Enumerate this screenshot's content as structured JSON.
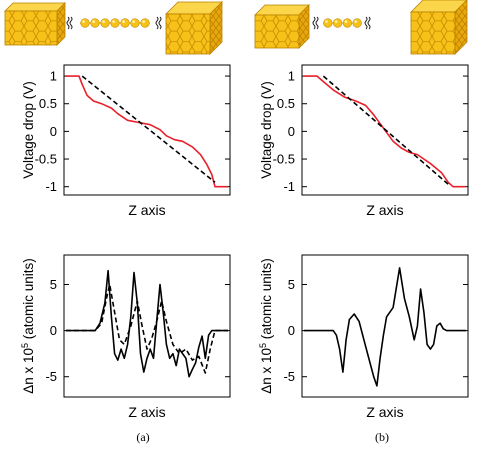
{
  "chart_data": [
    {
      "type": "line",
      "xlabel": "Z axis",
      "ylabel": "Voltage drop (V)",
      "ylim": [
        -1.15,
        1.2
      ],
      "yticks": [
        1,
        0.5,
        0,
        -0.5,
        -1
      ],
      "grid": false,
      "series": [
        {
          "color": "#e8202a",
          "style": "solid",
          "x": [
            0,
            0.08,
            0.1,
            0.13,
            0.17,
            0.22,
            0.28,
            0.32,
            0.38,
            0.45,
            0.52,
            0.58,
            0.62,
            0.67,
            0.72,
            0.78,
            0.83,
            0.87,
            0.9,
            0.92,
            1
          ],
          "y": [
            1,
            1,
            0.85,
            0.65,
            0.55,
            0.5,
            0.42,
            0.32,
            0.2,
            0.16,
            0.12,
            0.03,
            -0.08,
            -0.15,
            -0.18,
            -0.28,
            -0.42,
            -0.6,
            -0.78,
            -1,
            -1
          ]
        },
        {
          "color": "#000000",
          "style": "dashed",
          "x": [
            0.1,
            0.92
          ],
          "y": [
            1,
            -0.92
          ]
        }
      ]
    },
    {
      "type": "line",
      "xlabel": "Z axis",
      "ylabel": "Voltage drop (V)",
      "ylim": [
        -1.15,
        1.2
      ],
      "yticks": [
        1,
        0.5,
        0,
        -0.5,
        -1
      ],
      "grid": false,
      "series": [
        {
          "color": "#e8202a",
          "style": "solid",
          "x": [
            0,
            0.08,
            0.12,
            0.18,
            0.25,
            0.32,
            0.38,
            0.43,
            0.5,
            0.55,
            0.6,
            0.65,
            0.7,
            0.78,
            0.85,
            0.89,
            0.92,
            1
          ],
          "y": [
            1,
            1,
            0.9,
            0.75,
            0.62,
            0.55,
            0.47,
            0.3,
            0.02,
            -0.18,
            -0.3,
            -0.38,
            -0.42,
            -0.58,
            -0.75,
            -0.92,
            -1,
            -1
          ]
        },
        {
          "color": "#000000",
          "style": "dashed",
          "x": [
            0.12,
            0.9
          ],
          "y": [
            1,
            -0.98
          ]
        }
      ]
    },
    {
      "type": "line",
      "xlabel": "Z axis",
      "ylabel": "Δn x 10",
      "ylabel_sup": "5",
      "ylabel_suffix": " (atomic units)",
      "ylim": [
        -7.2,
        8.2
      ],
      "yticks": [
        5,
        0,
        -5
      ],
      "grid": false,
      "series": [
        {
          "color": "#000000",
          "style": "solid",
          "x": [
            0,
            0.18,
            0.21,
            0.24,
            0.26,
            0.28,
            0.3,
            0.32,
            0.34,
            0.36,
            0.38,
            0.4,
            0.42,
            0.44,
            0.46,
            0.48,
            0.5,
            0.52,
            0.54,
            0.56,
            0.58,
            0.6,
            0.62,
            0.64,
            0.66,
            0.68,
            0.7,
            0.72,
            0.74,
            0.76,
            0.78,
            0.8,
            0.82,
            0.84,
            0.86,
            0.88,
            0.9,
            1
          ],
          "y": [
            0,
            0,
            0.8,
            3,
            6.5,
            1.5,
            -2.5,
            -3.2,
            -2,
            -3,
            -1.5,
            1.5,
            6.3,
            3,
            -2.5,
            -4.5,
            -3,
            -2,
            -3,
            1,
            5,
            2,
            -1.5,
            -3,
            -2.5,
            -3.8,
            -2,
            -2.5,
            -3,
            -5,
            -4.2,
            -3.5,
            -1.8,
            -0.6,
            -3,
            -0.5,
            0,
            0
          ]
        },
        {
          "color": "#000000",
          "style": "dashed",
          "x": [
            0,
            0.18,
            0.22,
            0.25,
            0.27,
            0.3,
            0.33,
            0.36,
            0.4,
            0.44,
            0.47,
            0.5,
            0.53,
            0.56,
            0.59,
            0.62,
            0.66,
            0.7,
            0.74,
            0.78,
            0.82,
            0.86,
            0.89,
            0.92,
            1
          ],
          "y": [
            0,
            0,
            0.8,
            3.5,
            5,
            2,
            -1,
            -1.5,
            0.5,
            3.2,
            0.5,
            -2,
            -0.8,
            1,
            3.2,
            1,
            -1.5,
            -2.5,
            -2,
            -3.2,
            -2.8,
            -4.6,
            -2,
            0,
            0
          ]
        }
      ]
    },
    {
      "type": "line",
      "xlabel": "Z axis",
      "ylabel": "Δn x 10",
      "ylabel_sup": "5",
      "ylabel_suffix": " (atomic units)",
      "ylim": [
        -7.2,
        8.2
      ],
      "yticks": [
        5,
        0,
        -5
      ],
      "grid": false,
      "series": [
        {
          "color": "#000000",
          "style": "solid",
          "x": [
            0,
            0.18,
            0.2,
            0.22,
            0.24,
            0.26,
            0.28,
            0.31,
            0.34,
            0.37,
            0.4,
            0.43,
            0.45,
            0.47,
            0.49,
            0.51,
            0.55,
            0.59,
            0.62,
            0.65,
            0.68,
            0.7,
            0.72,
            0.74,
            0.76,
            0.78,
            0.8,
            0.82,
            0.84,
            0.86,
            0.88,
            0.9,
            1
          ],
          "y": [
            0,
            0,
            -0.5,
            -2,
            -4.5,
            -1,
            1.2,
            1.8,
            1,
            -1,
            -3,
            -5,
            -6,
            -3,
            -0.5,
            1.5,
            2.5,
            6.8,
            3.5,
            1.5,
            -1,
            0.5,
            4.5,
            2,
            -1.5,
            -2,
            -1.5,
            0.5,
            0.8,
            0.2,
            0,
            0,
            0
          ]
        }
      ]
    }
  ],
  "captions": {
    "left": "(a)",
    "right": "(b)"
  }
}
